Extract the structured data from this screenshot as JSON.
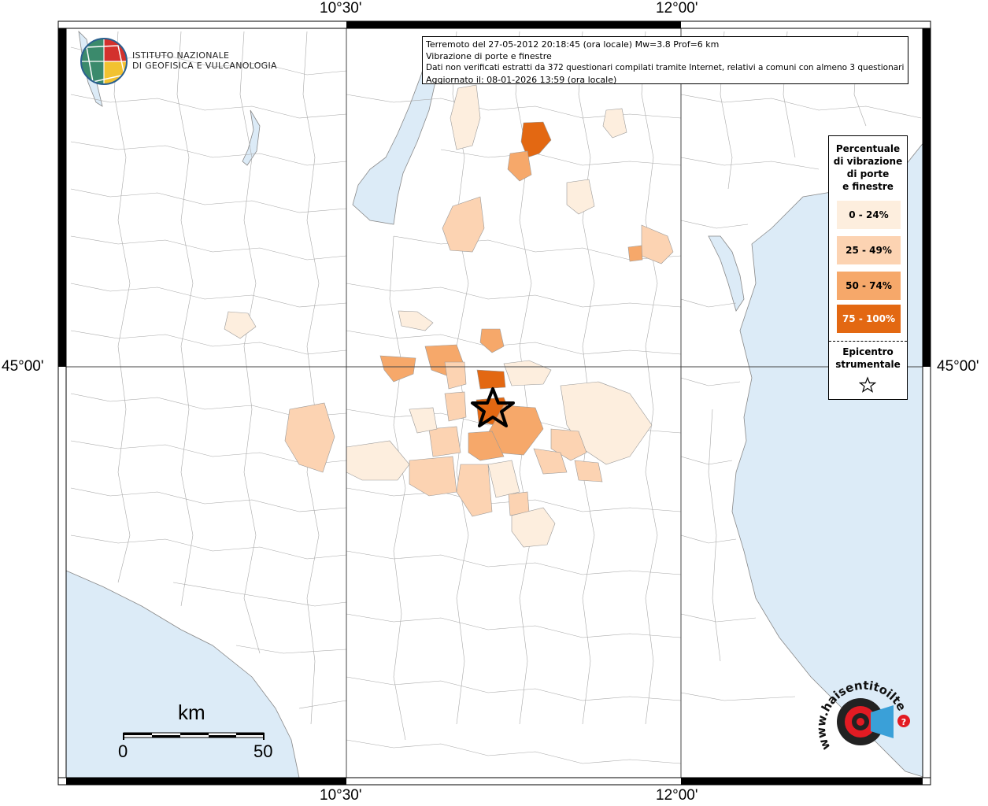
{
  "coords": {
    "lon_west": "10°30'",
    "lon_east": "12°00'",
    "lat": "45°00'"
  },
  "info": {
    "line1": "Terremoto del 27-05-2012 20:18:45 (ora locale) Mw=3.8 Prof=6 km",
    "line2": "Vibrazione di porte e finestre",
    "line3": "Dati non verificati estratti da 372 questionari compilati tramite Internet, relativi a comuni con almeno 3 questionari.",
    "line4": "Aggiornato il: 08-01-2026 13:59 (ora locale)"
  },
  "legend": {
    "title": [
      "Percentuale",
      "di vibrazione",
      "di porte",
      "e finestre"
    ],
    "classes": [
      {
        "label": "0 - 24%",
        "color": "#fdeede"
      },
      {
        "label": "25 - 49%",
        "color": "#fcd3b2"
      },
      {
        "label": "50 - 74%",
        "color": "#f6a86a"
      },
      {
        "label": "75 - 100%",
        "color": "#e36812"
      }
    ],
    "epicentro": [
      "Epicentro",
      "strumentale"
    ]
  },
  "logos": {
    "ingv_line1": "ISTITUTO NAZIONALE",
    "ingv_line2": "DI GEOFISICA E VULCANOLOGIA",
    "hst_text": "www.haisentitoilterremoto.it"
  },
  "scale": {
    "unit": "km",
    "start": "0",
    "end": "50"
  },
  "colors": {
    "sea": "#dcebf7",
    "land": "#ffffff",
    "border": "#9a9a9a"
  }
}
